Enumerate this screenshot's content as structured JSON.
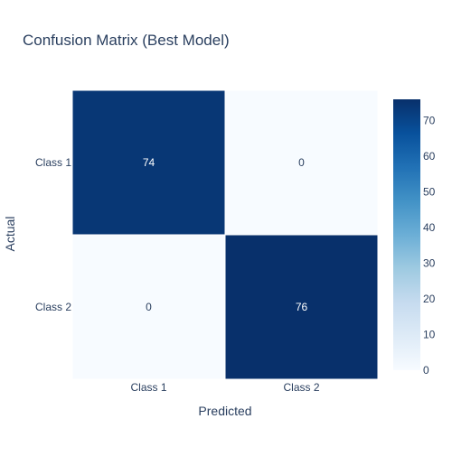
{
  "chart_data": {
    "type": "heatmap",
    "title": "Confusion Matrix (Best Model)",
    "xlabel": "Predicted",
    "ylabel": "Actual",
    "x_categories": [
      "Class 1",
      "Class 2"
    ],
    "y_categories": [
      "Class 1",
      "Class 2"
    ],
    "z": [
      [
        74,
        0
      ],
      [
        0,
        76
      ]
    ],
    "colorscale": "Blues",
    "colorbar": {
      "zmin": 0,
      "zmax": 76,
      "ticks": [
        0,
        10,
        20,
        30,
        40,
        50,
        60,
        70
      ]
    },
    "cell_label_colors": {
      "dark": "#ffffff",
      "light": "#2a3f5f"
    },
    "text_color": "#2a3f5f"
  }
}
